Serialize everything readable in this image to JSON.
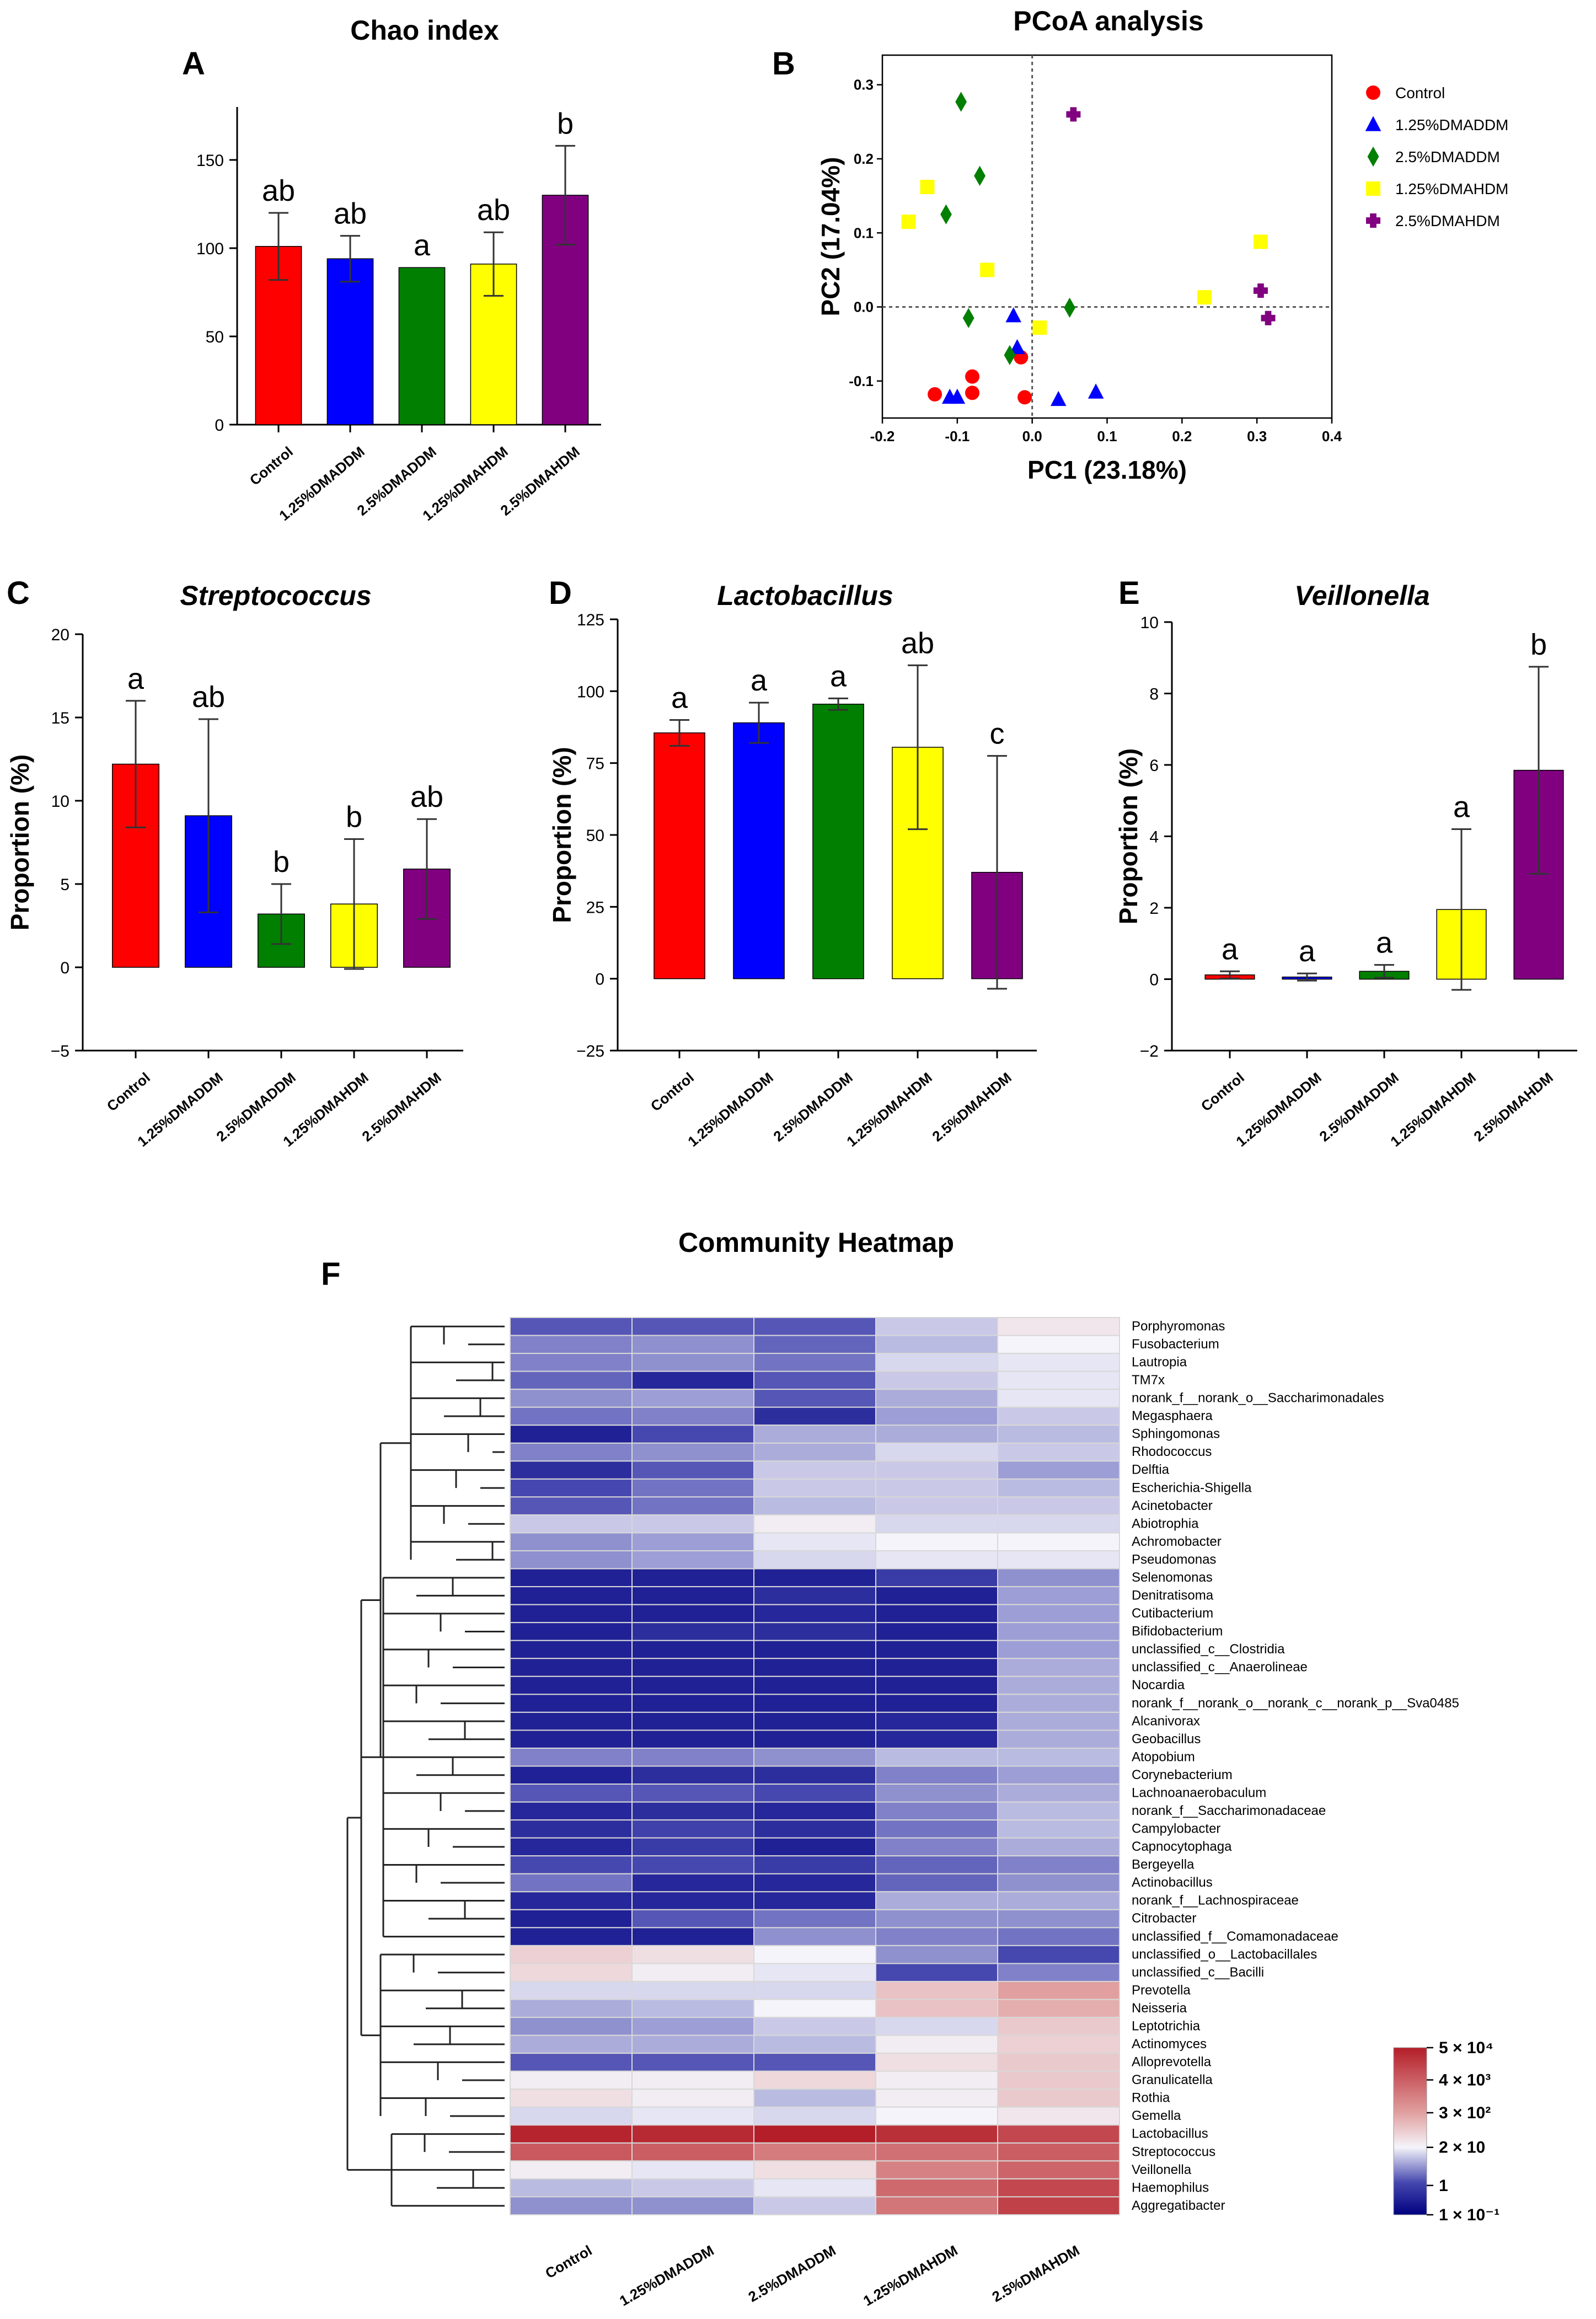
{
  "groups": [
    "Control",
    "1.25%DMADDM",
    "2.5%DMADDM",
    "1.25%DMAHDM",
    "2.5%DMAHDM"
  ],
  "colors": {
    "Control": "#ff0000",
    "1.25%DMADDM": "#0000ff",
    "2.5%DMADDM": "#007f00",
    "1.25%DMAHDM": "#ffff00",
    "2.5%DMAHDM": "#800080"
  },
  "chart_data": [
    {
      "panel": "A",
      "type": "bar",
      "title": "Chao index",
      "xlabel": "",
      "ylabel": "",
      "categories": [
        "Control",
        "1.25%DMADDM",
        "2.5%DMADDM",
        "1.25%DMAHDM",
        "2.5%DMAHDM"
      ],
      "values": [
        101,
        94,
        89,
        91,
        130
      ],
      "errors": [
        19,
        13,
        0,
        18,
        28
      ],
      "letters": [
        "ab",
        "ab",
        "a",
        "ab",
        "b"
      ],
      "ylim": [
        0,
        180
      ],
      "yticks": [
        0,
        50,
        100,
        150
      ]
    },
    {
      "panel": "B",
      "type": "scatter",
      "title": "PCoA analysis",
      "xlabel": "PC1 (23.18%)",
      "ylabel": "PC2 (17.04%)",
      "xlim": [
        -0.2,
        0.4
      ],
      "ylim": [
        -0.15,
        0.34
      ],
      "xticks": [
        -0.2,
        -0.1,
        0.0,
        0.1,
        0.2,
        0.3,
        0.4
      ],
      "xtick_labels": [
        "-0.2",
        "-0.1",
        "0.0",
        "0.1",
        "0.2",
        "0.3",
        "0.4"
      ],
      "yticks": [
        -0.1,
        0.0,
        0.1,
        0.2,
        0.3
      ],
      "ytick_labels": [
        "-0.1",
        "0.0",
        "0.1",
        "0.2",
        "0.3"
      ],
      "legend": [
        "Control",
        "1.25%DMADDM",
        "2.5%DMADDM",
        "1.25%DMAHDM",
        "2.5%DMAHDM"
      ],
      "series": [
        {
          "name": "Control",
          "marker": "circle",
          "points": [
            [
              -0.13,
              -0.118
            ],
            [
              -0.08,
              -0.094
            ],
            [
              -0.08,
              -0.116
            ],
            [
              -0.015,
              -0.068
            ],
            [
              -0.01,
              -0.122
            ]
          ]
        },
        {
          "name": "1.25%DMADDM",
          "marker": "triangle",
          "points": [
            [
              -0.11,
              -0.122
            ],
            [
              -0.1,
              -0.122
            ],
            [
              -0.025,
              -0.012
            ],
            [
              -0.02,
              -0.055
            ],
            [
              0.035,
              -0.125
            ],
            [
              0.085,
              -0.115
            ]
          ]
        },
        {
          "name": "2.5%DMADDM",
          "marker": "diamond",
          "points": [
            [
              -0.095,
              0.277
            ],
            [
              -0.07,
              0.177
            ],
            [
              -0.115,
              0.125
            ],
            [
              -0.085,
              -0.015
            ],
            [
              -0.03,
              -0.065
            ],
            [
              0.05,
              -0.001
            ]
          ]
        },
        {
          "name": "1.25%DMAHDM",
          "marker": "square",
          "points": [
            [
              -0.165,
              0.115
            ],
            [
              -0.14,
              0.162
            ],
            [
              -0.06,
              0.05
            ],
            [
              0.01,
              -0.028
            ],
            [
              0.23,
              0.013
            ],
            [
              0.305,
              0.088
            ]
          ]
        },
        {
          "name": "2.5%DMAHDM",
          "marker": "cross",
          "points": [
            [
              0.055,
              0.26
            ],
            [
              0.305,
              0.022
            ],
            [
              0.315,
              -0.015
            ]
          ]
        }
      ]
    },
    {
      "panel": "C",
      "type": "bar",
      "title": "Streptococcus",
      "xlabel": "",
      "ylabel": "Proportion (%)",
      "categories": [
        "Control",
        "1.25%DMADDM",
        "2.5%DMADDM",
        "1.25%DMAHDM",
        "2.5%DMAHDM"
      ],
      "values": [
        12.2,
        9.1,
        3.2,
        3.8,
        5.9
      ],
      "errors": [
        3.8,
        5.8,
        1.8,
        3.9,
        3.0
      ],
      "letters": [
        "a",
        "ab",
        "b",
        "b",
        "ab"
      ],
      "ylim": [
        -5,
        20
      ],
      "yticks": [
        -5,
        0,
        5,
        10,
        15,
        20
      ]
    },
    {
      "panel": "D",
      "type": "bar",
      "title": "Lactobacillus",
      "xlabel": "",
      "ylabel": "Proportion (%)",
      "categories": [
        "Control",
        "1.25%DMADDM",
        "2.5%DMADDM",
        "1.25%DMAHDM",
        "2.5%DMAHDM"
      ],
      "values": [
        85.5,
        89,
        95.5,
        80.5,
        37
      ],
      "errors": [
        4.5,
        7,
        2,
        28.5,
        40.5
      ],
      "letters": [
        "a",
        "a",
        "a",
        "ab",
        "c"
      ],
      "ylim": [
        -25,
        125
      ],
      "yticks": [
        -25,
        0,
        25,
        50,
        75,
        100,
        125
      ]
    },
    {
      "panel": "E",
      "type": "bar",
      "title": "Veillonella",
      "xlabel": "",
      "ylabel": "Proportion (%)",
      "categories": [
        "Control",
        "1.25%DMADDM",
        "2.5%DMADDM",
        "1.25%DMAHDM",
        "2.5%DMAHDM"
      ],
      "values": [
        0.12,
        0.06,
        0.22,
        1.95,
        5.85
      ],
      "errors": [
        0.1,
        0.1,
        0.18,
        2.25,
        2.9
      ],
      "letters": [
        "a",
        "a",
        "a",
        "a",
        "b"
      ],
      "ylim": [
        -2,
        10
      ],
      "yticks": [
        -2,
        0,
        2,
        4,
        6,
        8,
        10
      ]
    },
    {
      "panel": "F",
      "type": "heatmap",
      "title": "Community Heatmap",
      "columns": [
        "Control",
        "1.25%DMADDM",
        "2.5%DMADDM",
        "1.25%DMAHDM",
        "2.5%DMAHDM"
      ],
      "scale": "log10 relative abundance",
      "colorbar_ticks": [
        "5 × 10⁴",
        "4 × 10³",
        "3 × 10²",
        "2 × 10",
        "1",
        "1 × 10⁻¹"
      ],
      "colorbar_tick_values": [
        4.7,
        3.6,
        2.48,
        1.3,
        0,
        -1
      ],
      "rows": [
        {
          "name": "Porphyromonas",
          "values": [
            0.2,
            0.2,
            0.2,
            1.0,
            1.5
          ]
        },
        {
          "name": "Fusobacterium",
          "values": [
            0.5,
            0.6,
            0.3,
            0.9,
            1.3
          ]
        },
        {
          "name": "Lautropia",
          "values": [
            0.5,
            0.6,
            0.4,
            1.1,
            1.2
          ]
        },
        {
          "name": "TM7x",
          "values": [
            0.3,
            -0.4,
            0.2,
            1.0,
            1.2
          ]
        },
        {
          "name": "norank_f__norank_o__Saccharimonadales",
          "values": [
            0.6,
            0.7,
            0.2,
            0.8,
            1.2
          ]
        },
        {
          "name": "Megasphaera",
          "values": [
            0.4,
            0.5,
            -0.3,
            0.7,
            1.0
          ]
        },
        {
          "name": "Sphingomonas",
          "values": [
            -0.5,
            0.1,
            0.8,
            0.8,
            0.9
          ]
        },
        {
          "name": "Rhodococcus",
          "values": [
            0.5,
            0.6,
            0.8,
            1.1,
            1.0
          ]
        },
        {
          "name": "Delftia",
          "values": [
            -0.3,
            0.2,
            1.0,
            1.0,
            0.7
          ]
        },
        {
          "name": "Escherichia-Shigella",
          "values": [
            0.1,
            0.4,
            1.0,
            1.0,
            0.9
          ]
        },
        {
          "name": "Acinetobacter",
          "values": [
            0.2,
            0.4,
            0.9,
            1.0,
            1.0
          ]
        },
        {
          "name": "Abiotrophia",
          "values": [
            1.0,
            1.0,
            1.4,
            1.1,
            1.1
          ]
        },
        {
          "name": "Achromobacter",
          "values": [
            0.6,
            0.7,
            1.2,
            1.3,
            1.3
          ]
        },
        {
          "name": "Pseudomonas",
          "values": [
            0.6,
            0.7,
            1.1,
            1.2,
            1.2
          ]
        },
        {
          "name": "Selenomonas",
          "values": [
            -0.5,
            -0.5,
            -0.5,
            -0.1,
            0.6
          ]
        },
        {
          "name": "Denitratisoma",
          "values": [
            -0.5,
            -0.5,
            -0.3,
            -0.5,
            0.7
          ]
        },
        {
          "name": "Cutibacterium",
          "values": [
            -0.5,
            -0.5,
            -0.4,
            -0.5,
            0.7
          ]
        },
        {
          "name": "Bifidobacterium",
          "values": [
            -0.5,
            -0.3,
            -0.3,
            -0.5,
            0.7
          ]
        },
        {
          "name": "unclassified_c__Clostridia",
          "values": [
            -0.5,
            -0.5,
            -0.5,
            -0.5,
            0.7
          ]
        },
        {
          "name": "unclassified_c__Anaerolineae",
          "values": [
            -0.5,
            -0.5,
            -0.5,
            -0.5,
            0.8
          ]
        },
        {
          "name": "Nocardia",
          "values": [
            -0.5,
            -0.5,
            -0.5,
            -0.5,
            0.8
          ]
        },
        {
          "name": "norank_f__norank_o__norank_c__norank_p__Sva0485",
          "values": [
            -0.5,
            -0.5,
            -0.5,
            -0.5,
            0.8
          ]
        },
        {
          "name": "Alcanivorax",
          "values": [
            -0.5,
            -0.5,
            -0.5,
            -0.4,
            0.8
          ]
        },
        {
          "name": "Geobacillus",
          "values": [
            -0.5,
            -0.5,
            -0.5,
            -0.4,
            0.8
          ]
        },
        {
          "name": "Atopobium",
          "values": [
            0.5,
            0.5,
            0.6,
            0.9,
            0.9
          ]
        },
        {
          "name": "Corynebacterium",
          "values": [
            -0.5,
            -0.3,
            -0.3,
            0.5,
            0.7
          ]
        },
        {
          "name": "Lachnoanaerobaculum",
          "values": [
            0.2,
            0.2,
            0.1,
            0.6,
            0.8
          ]
        },
        {
          "name": "norank_f__Saccharimonadaceae",
          "values": [
            -0.4,
            -0.3,
            -0.4,
            0.5,
            0.9
          ]
        },
        {
          "name": "Campylobacter",
          "values": [
            -0.3,
            0.0,
            -0.3,
            0.4,
            0.9
          ]
        },
        {
          "name": "Capnocytophaga",
          "values": [
            -0.4,
            -0.1,
            -0.5,
            0.5,
            0.8
          ]
        },
        {
          "name": "Bergeyella",
          "values": [
            0.1,
            0.1,
            -0.1,
            0.3,
            0.5
          ]
        },
        {
          "name": "Actinobacillus",
          "values": [
            0.4,
            -0.4,
            -0.4,
            0.3,
            0.6
          ]
        },
        {
          "name": "norank_f__Lachnospiraceae",
          "values": [
            -0.4,
            -0.4,
            -0.4,
            0.8,
            0.8
          ]
        },
        {
          "name": "Citrobacter",
          "values": [
            -0.5,
            0.2,
            0.4,
            0.6,
            0.6
          ]
        },
        {
          "name": "unclassified_f__Comamonadaceae",
          "values": [
            -0.5,
            -0.5,
            0.6,
            0.5,
            0.4
          ]
        },
        {
          "name": "unclassified_o__Lactobacillales",
          "values": [
            1.8,
            1.6,
            1.3,
            0.6,
            0.1
          ]
        },
        {
          "name": "unclassified_c__Bacilli",
          "values": [
            1.7,
            1.4,
            1.2,
            0.1,
            0.5
          ]
        },
        {
          "name": "Prevotella",
          "values": [
            1.1,
            1.1,
            1.1,
            2.0,
            2.5
          ]
        },
        {
          "name": "Neisseria",
          "values": [
            0.8,
            0.9,
            1.3,
            2.0,
            2.3
          ]
        },
        {
          "name": "Leptotrichia",
          "values": [
            0.6,
            0.7,
            1.0,
            1.1,
            1.9
          ]
        },
        {
          "name": "Actinomyces",
          "values": [
            0.8,
            0.8,
            0.9,
            1.4,
            1.8
          ]
        },
        {
          "name": "Alloprevotella",
          "values": [
            0.2,
            0.2,
            0.2,
            1.6,
            1.9
          ]
        },
        {
          "name": "Granulicatella",
          "values": [
            1.4,
            1.4,
            1.7,
            1.4,
            1.9
          ]
        },
        {
          "name": "Rothia",
          "values": [
            1.6,
            1.4,
            0.9,
            1.4,
            1.9
          ]
        },
        {
          "name": "Gemella",
          "values": [
            1.1,
            1.2,
            1.1,
            1.3,
            1.5
          ]
        },
        {
          "name": "Lactobacillus",
          "values": [
            4.6,
            4.5,
            4.7,
            4.4,
            4.0
          ]
        },
        {
          "name": "Streptococcus",
          "values": [
            3.7,
            3.6,
            3.1,
            3.3,
            3.6
          ]
        },
        {
          "name": "Veillonella",
          "values": [
            1.4,
            1.2,
            1.6,
            3.0,
            3.5
          ]
        },
        {
          "name": "Haemophilus",
          "values": [
            0.9,
            1.0,
            1.2,
            3.4,
            4.0
          ]
        },
        {
          "name": "Aggregatibacter",
          "values": [
            0.6,
            0.6,
            1.0,
            3.2,
            4.1
          ]
        }
      ]
    }
  ],
  "panel_letters": {
    "A": "A",
    "B": "B",
    "C": "C",
    "D": "D",
    "E": "E",
    "F": "F"
  }
}
